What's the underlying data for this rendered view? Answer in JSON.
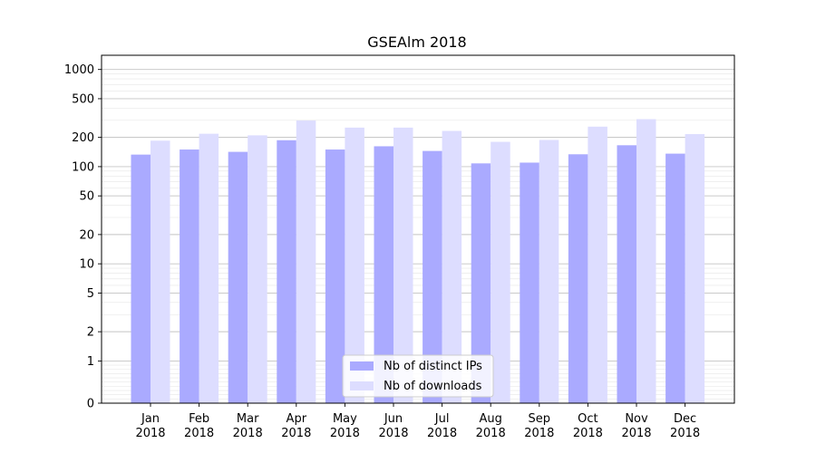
{
  "chart_data": {
    "type": "bar",
    "title": "GSEAlm 2018",
    "xlabel": "",
    "ylabel": "",
    "yscale": "symlog",
    "ylim": [
      0,
      1400
    ],
    "grid": true,
    "legend_position": "bottom-center",
    "categories": [
      [
        "Jan",
        "2018"
      ],
      [
        "Feb",
        "2018"
      ],
      [
        "Mar",
        "2018"
      ],
      [
        "Apr",
        "2018"
      ],
      [
        "May",
        "2018"
      ],
      [
        "Jun",
        "2018"
      ],
      [
        "Jul",
        "2018"
      ],
      [
        "Aug",
        "2018"
      ],
      [
        "Sep",
        "2018"
      ],
      [
        "Oct",
        "2018"
      ],
      [
        "Nov",
        "2018"
      ],
      [
        "Dec",
        "2018"
      ]
    ],
    "yticks": [
      0,
      1,
      2,
      5,
      10,
      20,
      50,
      100,
      200,
      500,
      1000
    ],
    "ytick_labels": [
      "0",
      "1",
      "2",
      "5",
      "10",
      "20",
      "50",
      "100",
      "200",
      "500",
      "1000"
    ],
    "series": [
      {
        "name": "Nb of distinct IPs",
        "color": "#aaaaff",
        "values": [
          133,
          150,
          142,
          187,
          150,
          162,
          145,
          108,
          110,
          134,
          166,
          136
        ]
      },
      {
        "name": "Nb of downloads",
        "color": "#ddddff",
        "values": [
          185,
          218,
          210,
          298,
          252,
          252,
          233,
          180,
          188,
          258,
          308,
          216
        ]
      }
    ]
  }
}
